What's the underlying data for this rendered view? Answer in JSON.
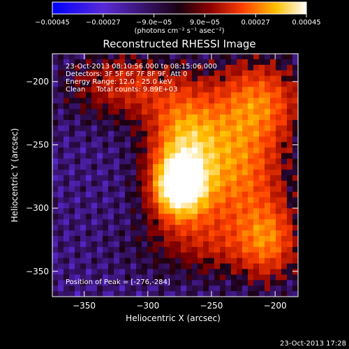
{
  "chart_data": {
    "type": "heatmap",
    "title": "Reconstructed RHESSI Image",
    "xlabel": "Heliocentric X (arcsec)",
    "ylabel": "Heliocentric Y (arcsec)",
    "xlim": [
      -375,
      -182
    ],
    "ylim": [
      -370,
      -178
    ],
    "x_ticks": [
      -350,
      -300,
      -250,
      -200
    ],
    "x_tick_labels": [
      "−350",
      "−300",
      "−250",
      "−200"
    ],
    "y_ticks": [
      -350,
      -300,
      -250,
      -200
    ],
    "y_tick_labels": [
      "−350",
      "−300",
      "−250",
      "−200"
    ],
    "colorbar": {
      "range": [
        -0.00045,
        0.00045
      ],
      "ticks": [
        -0.00045,
        -0.00027,
        -9e-05,
        9e-05,
        0.00027,
        0.00045
      ],
      "tick_labels": [
        "−0.00045",
        "−0.00027",
        "−9.0e−05",
        "9.0e−05",
        "0.00027",
        "0.00045"
      ],
      "unit_label": "(photons cm⁻² s⁻¹ asec⁻²)",
      "colors": [
        "#0000ff",
        "#5a2ad8",
        "#1a0010",
        "#8a0000",
        "#ff4000",
        "#ffc000",
        "#ffffff"
      ]
    },
    "annotations": [
      "23-Oct-2013 08:10:56.000 to 08:15:06.000",
      "Detectors: 3F 5F 6F 7F 8F 9F, Att 0",
      "Energy Range: 12.0 - 25.0 keV",
      "Clean     Total counts: 9.89E+03"
    ],
    "peak": {
      "x": -276,
      "y": -284
    },
    "peak_label": "Position of Peak = [-276,-284]",
    "grid": false
  },
  "footer": {
    "timestamp": "23-Oct-2013 17:28"
  }
}
